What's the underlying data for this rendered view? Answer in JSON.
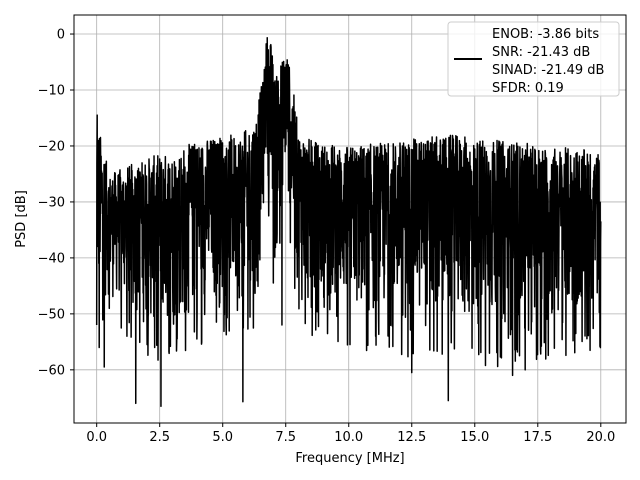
{
  "chart_data": {
    "type": "line",
    "title": "",
    "xlabel": "Frequency [MHz]",
    "ylabel": "PSD [dB]",
    "xlim": [
      -0.9,
      21.0
    ],
    "ylim": [
      -69.5,
      3.4
    ],
    "xticks": [
      0.0,
      2.5,
      5.0,
      7.5,
      10.0,
      12.5,
      15.0,
      17.5,
      20.0
    ],
    "xtick_labels": [
      "0.0",
      "2.5",
      "5.0",
      "7.5",
      "10.0",
      "12.5",
      "15.0",
      "17.5",
      "20.0"
    ],
    "yticks": [
      0,
      -10,
      -20,
      -30,
      -40,
      -50,
      -60
    ],
    "ytick_labels": [
      "0",
      "−10",
      "−20",
      "−30",
      "−40",
      "−50",
      "−60"
    ],
    "grid": true,
    "legend_position": "top-right",
    "series": [
      {
        "name": "ENOB: -3.86 bits\nSNR: -21.43 dB\nSINAD: -21.49 dB\nSFDR: 0.19",
        "color": "#000000",
        "noise_floor": {
          "top_envelope": -22,
          "median": -32,
          "bottom_envelope": -45
        },
        "envelope": {
          "x": [
            0.0,
            0.5,
            1.0,
            2.0,
            3.0,
            4.0,
            5.0,
            5.5,
            6.0,
            6.3,
            6.6,
            6.75,
            6.9,
            7.1,
            7.35,
            7.55,
            7.8,
            8.0,
            8.5,
            10.0,
            12.0,
            14.0,
            16.0,
            18.0,
            20.0
          ],
          "max": [
            -15,
            -25,
            -24,
            -22,
            -21,
            -19,
            -18,
            -18,
            -17,
            -14,
            -8,
            0,
            -1,
            -8,
            -4,
            -3,
            -10,
            -17,
            -19,
            -20,
            -19,
            -18,
            -19,
            -20,
            -21
          ],
          "min": [
            -52,
            -48,
            -50,
            -54,
            -55,
            -52,
            -50,
            -50,
            -52,
            -55,
            -35,
            -20,
            -38,
            -45,
            -30,
            -28,
            -40,
            -50,
            -52,
            -52,
            -54,
            -54,
            -56,
            -55,
            -52
          ]
        },
        "deep_dips": [
          {
            "x": 0.0,
            "y": -52
          },
          {
            "x": 0.1,
            "y": -56
          },
          {
            "x": 0.3,
            "y": -59.5
          },
          {
            "x": 1.2,
            "y": -54
          },
          {
            "x": 1.55,
            "y": -66
          },
          {
            "x": 2.3,
            "y": -56
          },
          {
            "x": 2.55,
            "y": -66.5
          },
          {
            "x": 3.3,
            "y": -48
          },
          {
            "x": 5.8,
            "y": -65.7
          },
          {
            "x": 7.35,
            "y": -52
          },
          {
            "x": 12.5,
            "y": -60.5
          },
          {
            "x": 13.95,
            "y": -65.5
          },
          {
            "x": 16.5,
            "y": -61
          },
          {
            "x": 17.0,
            "y": -60
          }
        ],
        "spikes": [
          {
            "x": 0.02,
            "y": -14.5
          }
        ]
      }
    ]
  }
}
